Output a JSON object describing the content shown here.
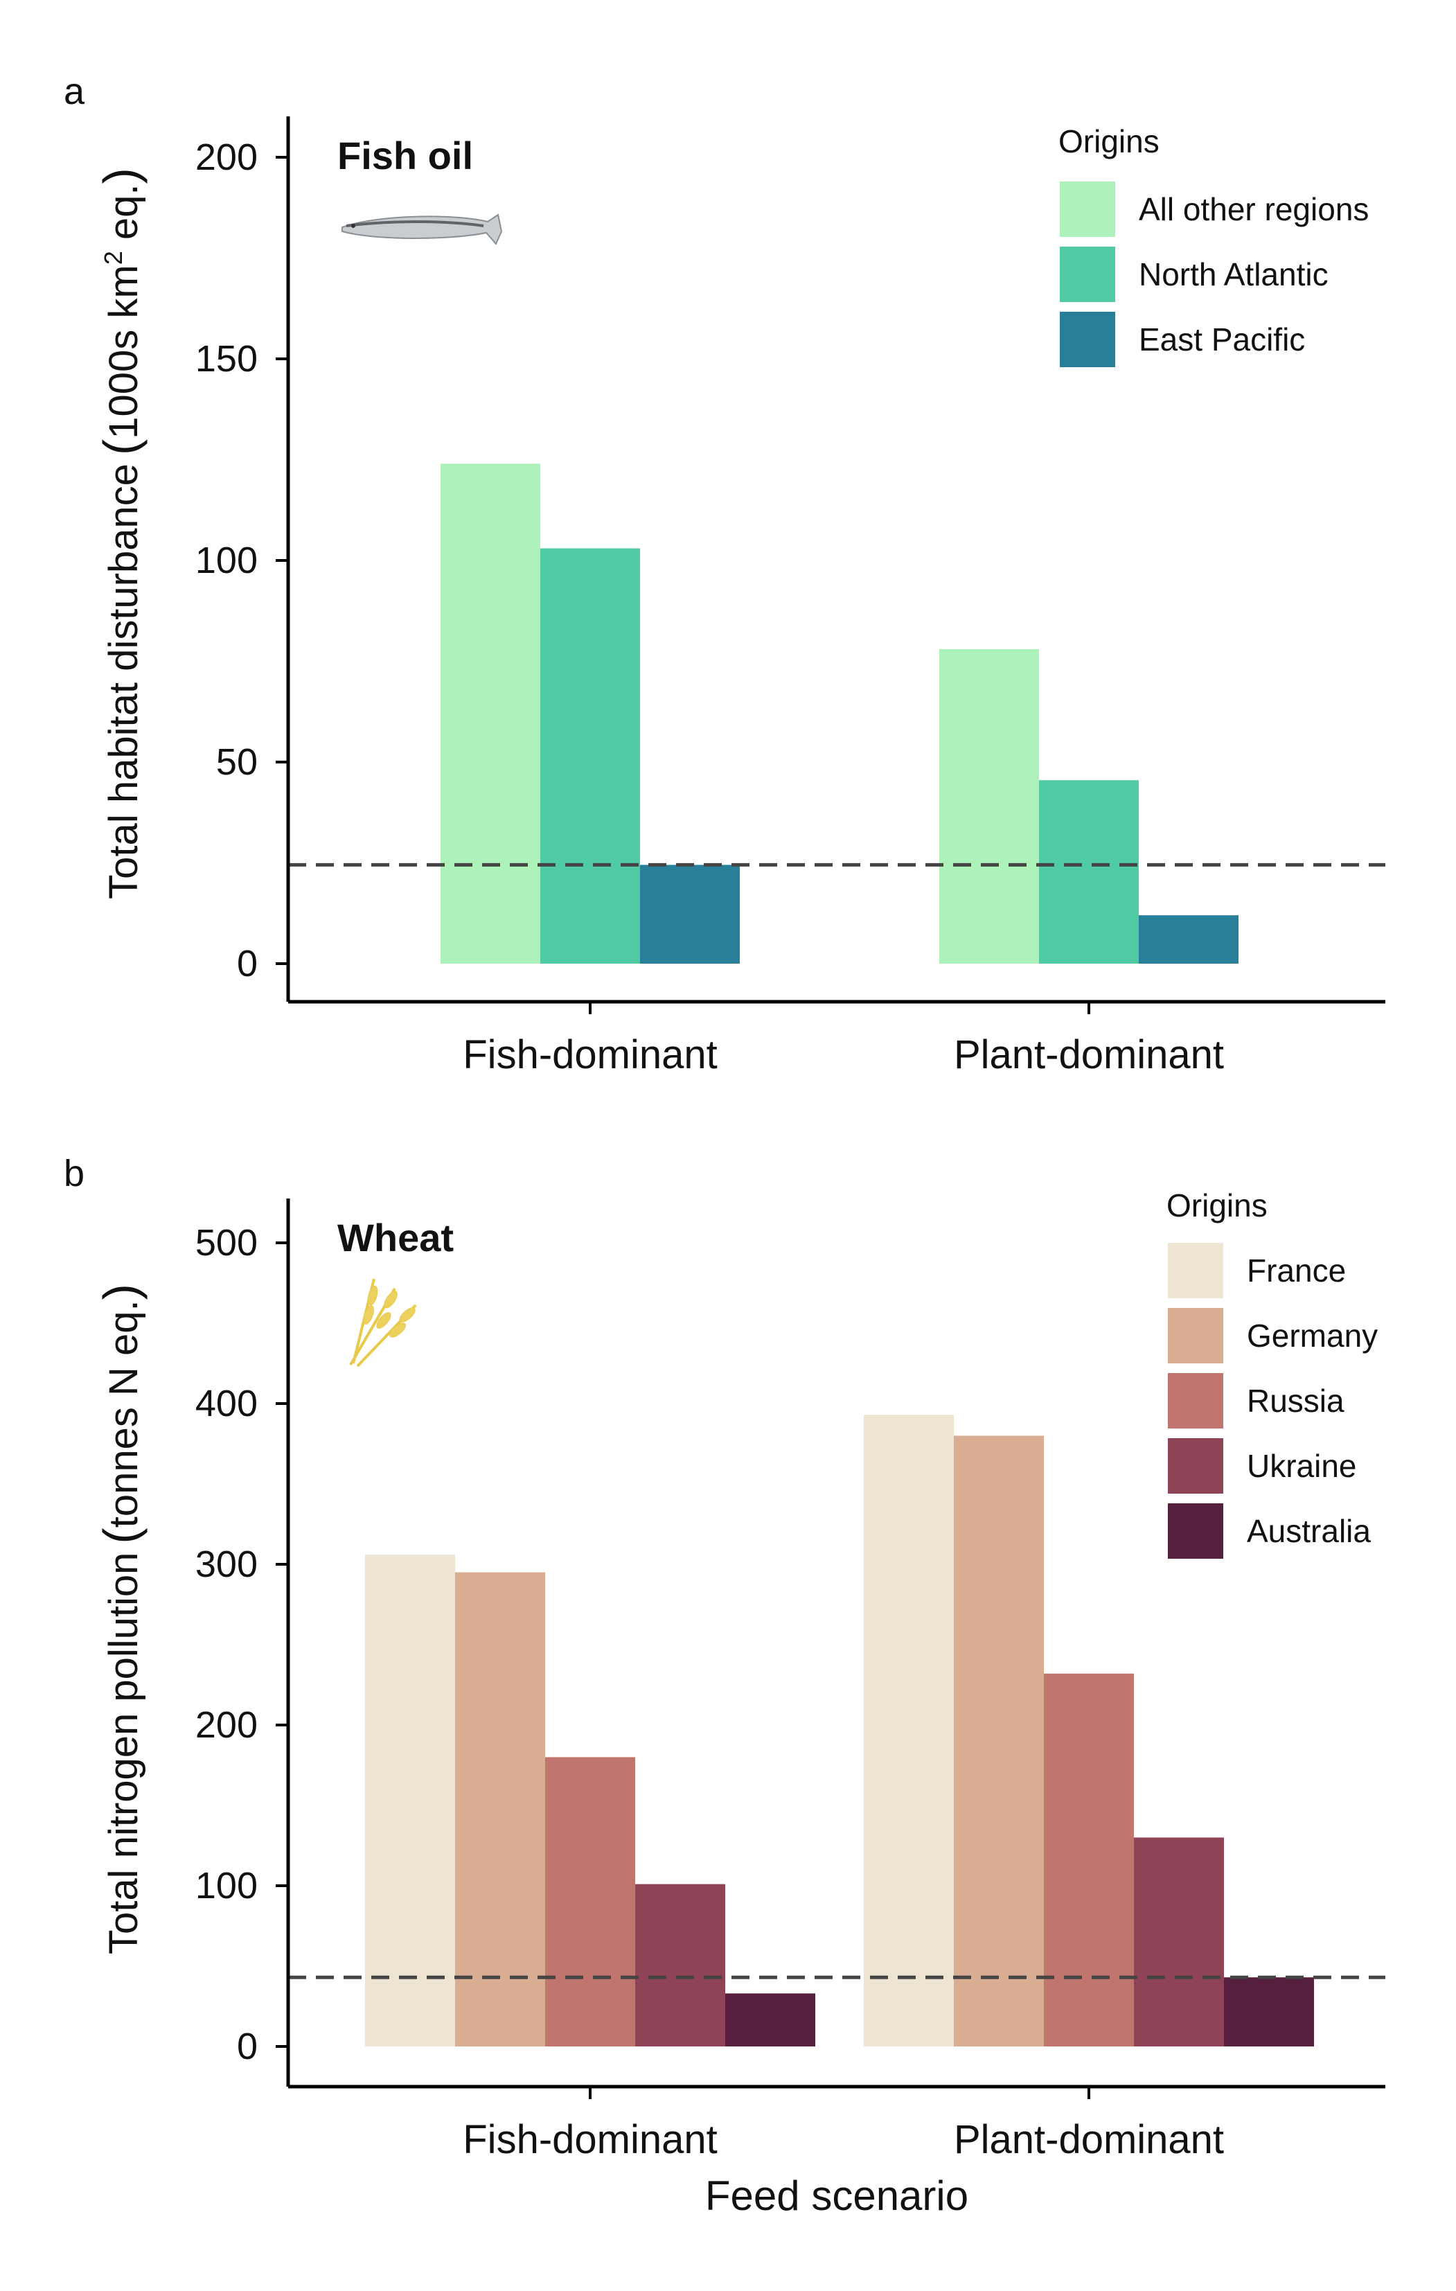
{
  "figure": {
    "x_axis_title": "Feed scenario",
    "reference_line_style": "dashed",
    "panels": [
      {
        "letter": "a",
        "title": "Fish oil",
        "icon": "fish-icon",
        "ylabel_main": "Total habitat disturbance",
        "ylabel_units_pre": "1000s km",
        "ylabel_units_sup": "2",
        "ylabel_units_post": " eq.",
        "legend_title": "Origins"
      },
      {
        "letter": "b",
        "title": "Wheat",
        "icon": "wheat-icon",
        "ylabel_main": "Total nitrogen pollution",
        "ylabel_units_pre": "tonnes N eq.",
        "ylabel_units_sup": "",
        "ylabel_units_post": "",
        "legend_title": "Origins"
      }
    ]
  },
  "chart_data": [
    {
      "type": "bar",
      "title": "Fish oil",
      "xlabel": "",
      "ylabel": "Total habitat disturbance (1000s km2 eq.)",
      "categories": [
        "Fish-dominant",
        "Plant-dominant"
      ],
      "ylim": [
        0,
        210
      ],
      "yticks": [
        0,
        50,
        100,
        150,
        200
      ],
      "reference_line": 24.5,
      "grid": false,
      "legend_position": "top-right",
      "series": [
        {
          "name": "All other regions",
          "color": "#adf2bb",
          "values": [
            124,
            78
          ]
        },
        {
          "name": "North Atlantic",
          "color": "#4fcaa4",
          "values": [
            103,
            45.5
          ]
        },
        {
          "name": "East Pacific",
          "color": "#277f9a",
          "values": [
            24.5,
            12
          ]
        }
      ]
    },
    {
      "type": "bar",
      "title": "Wheat",
      "xlabel": "Feed scenario",
      "ylabel": "Total nitrogen pollution (tonnes N eq.)",
      "categories": [
        "Fish-dominant",
        "Plant-dominant"
      ],
      "ylim": [
        0,
        525
      ],
      "yticks": [
        0,
        100,
        200,
        300,
        400,
        500
      ],
      "reference_line": 43,
      "grid": false,
      "legend_position": "top-right",
      "series": [
        {
          "name": "France",
          "color": "#ede4d1",
          "values": [
            306,
            393
          ]
        },
        {
          "name": "Germany",
          "color": "#d9ad91",
          "values": [
            295,
            380
          ]
        },
        {
          "name": "Russia",
          "color": "#c0756e",
          "values": [
            180,
            232
          ]
        },
        {
          "name": "Ukraine",
          "color": "#8f4356",
          "values": [
            101,
            130
          ]
        },
        {
          "name": "Australia",
          "color": "#561f3d",
          "values": [
            33,
            43
          ]
        }
      ]
    }
  ]
}
